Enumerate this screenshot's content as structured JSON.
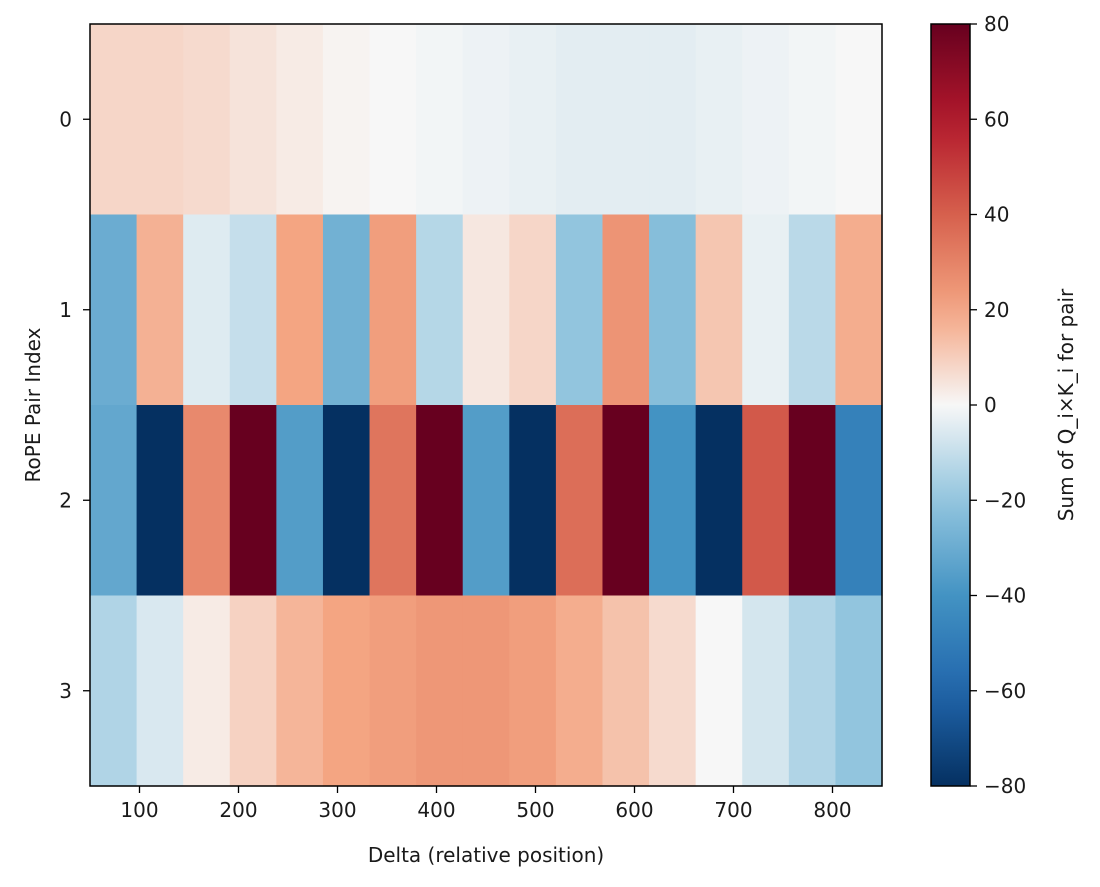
{
  "chart_data": {
    "type": "heatmap",
    "title": "",
    "xlabel": "Delta (relative position)",
    "ylabel": "RoPE Pair Index",
    "colorbar_label": "Sum of Q_i×K_i for pair",
    "colormap": "RdBu_r",
    "vmin": -80,
    "vmax": 80,
    "x_start": 50,
    "x_step": 47.06,
    "xlim": [
      50,
      850
    ],
    "x_ticks": [
      100,
      200,
      300,
      400,
      500,
      600,
      700,
      800
    ],
    "x_tick_labels": [
      "100",
      "200",
      "300",
      "400",
      "500",
      "600",
      "700",
      "800"
    ],
    "y_tick_labels": [
      "0",
      "1",
      "2",
      "3"
    ],
    "colorbar_ticks": [
      80,
      60,
      40,
      20,
      0,
      -20,
      -40,
      -60,
      -80
    ],
    "colorbar_tick_labels": [
      "80",
      "60",
      "40",
      "20",
      "0",
      "−20",
      "−40",
      "−60",
      "−80"
    ],
    "rows": [
      [
        8,
        8,
        7,
        5,
        3,
        1,
        0,
        -1,
        -2,
        -3,
        -4,
        -4,
        -4,
        -3,
        -2,
        -1,
        0
      ],
      [
        -30,
        17,
        -5,
        -10,
        20,
        -28,
        22,
        -13,
        4,
        8,
        -20,
        25,
        -23,
        12,
        -3,
        -12,
        18
      ],
      [
        -32,
        -80,
        28,
        80,
        -36,
        -80,
        34,
        80,
        -36,
        -80,
        36,
        80,
        -40,
        -80,
        42,
        80,
        -48
      ],
      [
        -14,
        -6,
        3,
        9,
        16,
        20,
        22,
        24,
        24,
        22,
        18,
        13,
        7,
        0,
        -7,
        -14,
        -20
      ]
    ]
  }
}
